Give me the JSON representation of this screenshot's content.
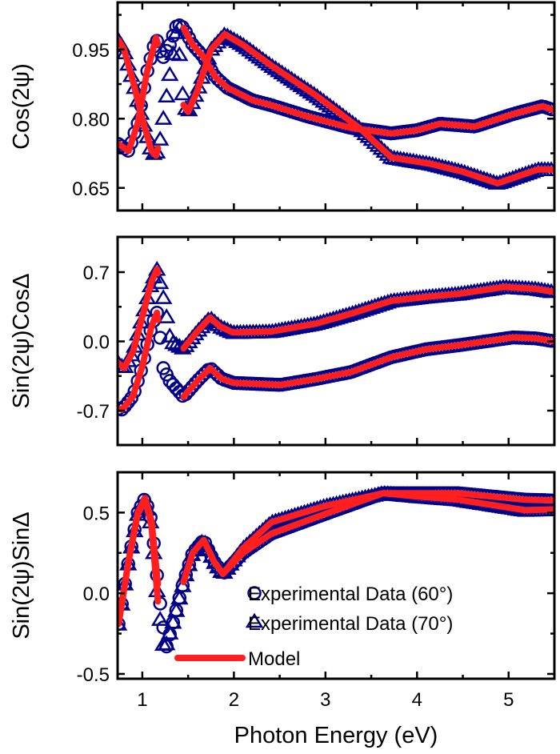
{
  "chart_data": [
    {
      "type": "scatter",
      "ylabel": "Cos(2ψ)",
      "xlim": [
        0.73,
        5.5
      ],
      "ylim": [
        0.601,
        1.052
      ],
      "yticks": [
        0.65,
        0.8,
        0.95
      ],
      "ytick_labels": [
        "0.65",
        "0.80",
        "0.95"
      ],
      "yminor": [
        0.725,
        0.875,
        1.025
      ],
      "series": [
        {
          "name": "Experimental Data (60°)",
          "marker": "circle",
          "points": [
            [
              0.74,
              0.745
            ],
            [
              0.85,
              0.73
            ],
            [
              0.95,
              0.79
            ],
            [
              1.05,
              0.9
            ],
            [
              1.15,
              0.975
            ],
            [
              1.22,
              0.93
            ],
            [
              1.3,
              0.96
            ],
            [
              1.38,
              1.005
            ],
            [
              1.45,
              0.997
            ],
            [
              1.55,
              0.96
            ],
            [
              1.66,
              0.936
            ],
            [
              1.8,
              0.89
            ],
            [
              1.93,
              0.867
            ],
            [
              2.2,
              0.84
            ],
            [
              2.41,
              0.829
            ],
            [
              2.8,
              0.805
            ],
            [
              3.28,
              0.78
            ],
            [
              3.72,
              0.768
            ],
            [
              4.0,
              0.775
            ],
            [
              4.25,
              0.789
            ],
            [
              4.63,
              0.783
            ],
            [
              5.05,
              0.81
            ],
            [
              5.37,
              0.827
            ],
            [
              5.5,
              0.818
            ]
          ]
        },
        {
          "name": "Experimental Data (70°)",
          "marker": "triangle",
          "points": [
            [
              0.74,
              0.97
            ],
            [
              0.8,
              0.95
            ],
            [
              0.9,
              0.88
            ],
            [
              1.0,
              0.8
            ],
            [
              1.1,
              0.73
            ],
            [
              1.15,
              0.72
            ],
            [
              1.2,
              0.76
            ],
            [
              1.28,
              0.87
            ],
            [
              1.38,
              1.0
            ],
            [
              1.45,
              0.83
            ],
            [
              1.5,
              0.815
            ],
            [
              1.6,
              0.86
            ],
            [
              1.75,
              0.95
            ],
            [
              1.9,
              0.983
            ],
            [
              2.1,
              0.96
            ],
            [
              2.41,
              0.915
            ],
            [
              2.9,
              0.85
            ],
            [
              3.37,
              0.78
            ],
            [
              3.72,
              0.716
            ],
            [
              4.15,
              0.702
            ],
            [
              4.5,
              0.685
            ],
            [
              4.88,
              0.66
            ],
            [
              5.32,
              0.69
            ],
            [
              5.5,
              0.69
            ]
          ]
        }
      ]
    },
    {
      "type": "scatter",
      "ylabel": "Sin(2ψ)CosΔ",
      "xlim": [
        0.73,
        5.5
      ],
      "ylim": [
        -1.048,
        1.056
      ],
      "yticks": [
        -0.7,
        0.0,
        0.7
      ],
      "ytick_labels": [
        "-0.7",
        "0.0",
        "0.7"
      ],
      "yminor": [
        -0.35,
        0.35
      ],
      "series": [
        {
          "name": "Experimental Data (60°)",
          "marker": "circle",
          "points": [
            [
              0.74,
              -0.68
            ],
            [
              0.78,
              -0.69
            ],
            [
              0.9,
              -0.55
            ],
            [
              1.0,
              -0.25
            ],
            [
              1.1,
              0.15
            ],
            [
              1.16,
              0.29
            ],
            [
              1.2,
              0.0
            ],
            [
              1.23,
              -0.27
            ],
            [
              1.3,
              -0.4
            ],
            [
              1.45,
              -0.56
            ],
            [
              1.6,
              -0.4
            ],
            [
              1.74,
              -0.27
            ],
            [
              1.87,
              -0.38
            ],
            [
              2.0,
              -0.42
            ],
            [
              2.51,
              -0.44
            ],
            [
              2.9,
              -0.38
            ],
            [
              3.28,
              -0.31
            ],
            [
              3.72,
              -0.16
            ],
            [
              4.1,
              -0.08
            ],
            [
              4.45,
              -0.04
            ],
            [
              5.05,
              0.04
            ],
            [
              5.3,
              0.03
            ],
            [
              5.5,
              0.0
            ]
          ]
        },
        {
          "name": "Experimental Data (70°)",
          "marker": "triangle",
          "points": [
            [
              0.74,
              -0.22
            ],
            [
              0.8,
              -0.27
            ],
            [
              0.9,
              -0.1
            ],
            [
              1.0,
              0.25
            ],
            [
              1.1,
              0.6
            ],
            [
              1.16,
              0.73
            ],
            [
              1.22,
              0.5
            ],
            [
              1.31,
              0.0
            ],
            [
              1.45,
              -0.07
            ],
            [
              1.6,
              0.1
            ],
            [
              1.74,
              0.24
            ],
            [
              1.85,
              0.15
            ],
            [
              1.99,
              0.09
            ],
            [
              2.41,
              0.1
            ],
            [
              2.9,
              0.18
            ],
            [
              3.28,
              0.28
            ],
            [
              3.72,
              0.41
            ],
            [
              4.1,
              0.45
            ],
            [
              4.45,
              0.48
            ],
            [
              4.95,
              0.55
            ],
            [
              5.3,
              0.53
            ],
            [
              5.5,
              0.5
            ]
          ]
        }
      ]
    },
    {
      "type": "scatter",
      "ylabel": "Sin(2ψ)SinΔ",
      "xlabel": "Photon Energy (eV)",
      "xlim": [
        0.73,
        5.5
      ],
      "ylim": [
        -0.53,
        0.75
      ],
      "yticks": [
        -0.5,
        0.0,
        0.5
      ],
      "ytick_labels": [
        "-0.5",
        "0.0",
        "0.5"
      ],
      "yminor": [
        -0.25,
        0.25
      ],
      "series": [
        {
          "name": "Experimental Data (60°)",
          "marker": "circle",
          "points": [
            [
              0.74,
              -0.19
            ],
            [
              0.85,
              0.2
            ],
            [
              0.95,
              0.5
            ],
            [
              1.03,
              0.59
            ],
            [
              1.1,
              0.45
            ],
            [
              1.18,
              0.0
            ],
            [
              1.26,
              -0.34
            ],
            [
              1.35,
              -0.15
            ],
            [
              1.45,
              0.07
            ],
            [
              1.55,
              0.25
            ],
            [
              1.67,
              0.33
            ],
            [
              1.78,
              0.2
            ],
            [
              1.88,
              0.12
            ],
            [
              2.1,
              0.25
            ],
            [
              2.41,
              0.37
            ],
            [
              2.99,
              0.49
            ],
            [
              3.63,
              0.62
            ],
            [
              4.0,
              0.62
            ],
            [
              4.45,
              0.62
            ],
            [
              5.18,
              0.58
            ],
            [
              5.5,
              0.575
            ]
          ]
        },
        {
          "name": "Experimental Data (70°)",
          "marker": "triangle",
          "points": [
            [
              0.74,
              -0.19
            ],
            [
              0.85,
              0.2
            ],
            [
              0.95,
              0.49
            ],
            [
              1.03,
              0.58
            ],
            [
              1.1,
              0.42
            ],
            [
              1.17,
              -0.05
            ],
            [
              1.24,
              -0.36
            ],
            [
              1.35,
              -0.15
            ],
            [
              1.45,
              0.07
            ],
            [
              1.55,
              0.25
            ],
            [
              1.67,
              0.33
            ],
            [
              1.78,
              0.2
            ],
            [
              1.88,
              0.12
            ],
            [
              2.1,
              0.28
            ],
            [
              2.41,
              0.44
            ],
            [
              2.99,
              0.54
            ],
            [
              3.63,
              0.62
            ],
            [
              4.0,
              0.6
            ],
            [
              4.45,
              0.58
            ],
            [
              5.18,
              0.515
            ],
            [
              5.5,
              0.52
            ]
          ]
        }
      ]
    }
  ],
  "model": {
    "name": "Model",
    "ranges_eV": [
      [
        0.74,
        1.17
      ],
      [
        1.45,
        5.5
      ]
    ]
  },
  "xticks": [
    1,
    2,
    3,
    4,
    5
  ],
  "xtick_labels": [
    "1",
    "2",
    "3",
    "4",
    "5"
  ],
  "xminor": [
    1.5,
    2.5,
    3.5,
    4.5
  ],
  "xlabel": "Photon Energy (eV)",
  "legend": {
    "placement": "bottom-right of bottom panel",
    "items": [
      {
        "label": "Experimental Data (60°)",
        "marker": "circle"
      },
      {
        "label": "Experimental Data (70°)",
        "marker": "triangle"
      },
      {
        "label": "Model",
        "marker": "line"
      }
    ]
  },
  "colors": {
    "data": "#00008b",
    "model": "#ff1f1f",
    "axes": "#000000"
  }
}
